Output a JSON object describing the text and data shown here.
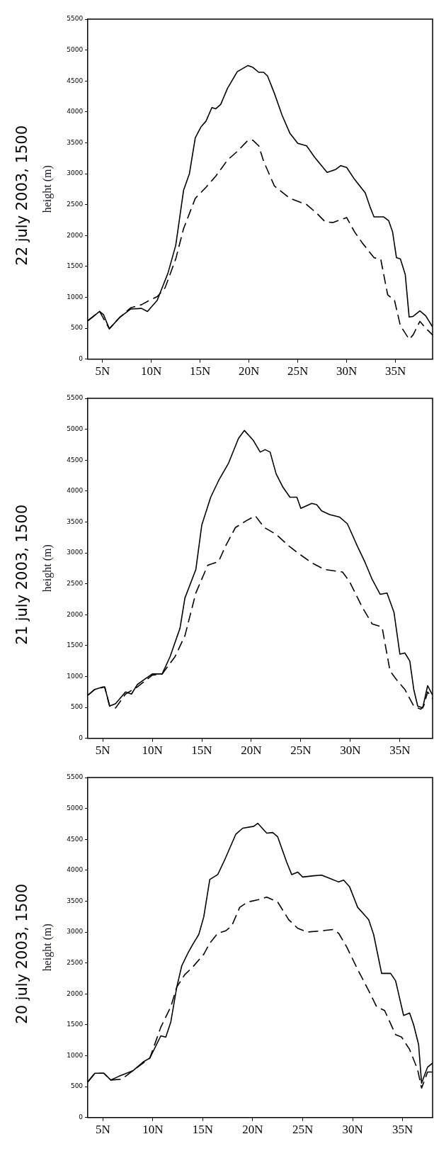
{
  "chart_data": [
    {
      "type": "line",
      "title": "22 july 2003, 1500",
      "ylabel": "height (m)",
      "xlim": [
        3.5,
        38.8
      ],
      "ylim": [
        0,
        5500
      ],
      "xticks": [
        {
          "value": 5,
          "label": "5N"
        },
        {
          "value": 10,
          "label": "10N"
        },
        {
          "value": 15,
          "label": "15N"
        },
        {
          "value": 20,
          "label": "20N"
        },
        {
          "value": 25,
          "label": "25N"
        },
        {
          "value": 30,
          "label": "30N"
        },
        {
          "value": 35,
          "label": "35N"
        }
      ],
      "yticks": [
        0,
        500,
        1000,
        1500,
        2000,
        2500,
        3000,
        3500,
        4000,
        4500,
        5000,
        5500
      ],
      "grid": false,
      "marker": "none",
      "series": [
        {
          "color": "#000000",
          "line_style": "solid",
          "x": [
            3.5,
            4.7,
            5.1,
            5.7,
            6.8,
            7.9,
            9.0,
            9.6,
            10.6,
            11.7,
            12.5,
            13.3,
            13.9,
            14.5,
            15.1,
            15.6,
            16.2,
            16.6,
            17.1,
            17.8,
            18.8,
            19.9,
            20.4,
            21.0,
            21.5,
            21.9,
            22.6,
            23.4,
            24.2,
            25.0,
            25.9,
            26.7,
            28.0,
            28.9,
            29.4,
            30.0,
            30.8,
            31.9,
            32.4,
            32.8,
            33.8,
            34.3,
            34.7,
            35.1,
            35.5,
            36.0,
            36.4,
            36.8,
            37.5,
            38.1,
            38.8
          ],
          "values": [
            620,
            770,
            720,
            490,
            680,
            810,
            820,
            770,
            950,
            1390,
            1840,
            2730,
            3000,
            3580,
            3760,
            3850,
            4070,
            4050,
            4120,
            4380,
            4650,
            4750,
            4720,
            4640,
            4640,
            4580,
            4300,
            3940,
            3650,
            3490,
            3450,
            3270,
            3020,
            3070,
            3130,
            3100,
            2910,
            2690,
            2460,
            2300,
            2300,
            2240,
            2060,
            1640,
            1620,
            1370,
            680,
            690,
            780,
            700,
            520
          ]
        },
        {
          "color": "#000000",
          "line_style": "dashed",
          "x": [
            3.5,
            4.7,
            5.7,
            6.8,
            7.9,
            9.0,
            9.8,
            10.6,
            11.4,
            12.5,
            13.3,
            14.5,
            15.6,
            16.6,
            17.8,
            18.8,
            19.9,
            20.4,
            21.0,
            21.5,
            22.6,
            24.2,
            25.9,
            27.0,
            27.8,
            28.6,
            30.0,
            30.8,
            31.6,
            32.8,
            33.5,
            34.2,
            34.9,
            35.5,
            36.4,
            36.8,
            37.5,
            38.1,
            38.8
          ],
          "values": [
            620,
            770,
            490,
            680,
            830,
            880,
            950,
            1010,
            1150,
            1620,
            2110,
            2600,
            2780,
            2960,
            3220,
            3360,
            3540,
            3540,
            3450,
            3200,
            2800,
            2600,
            2500,
            2350,
            2220,
            2210,
            2290,
            2060,
            1880,
            1640,
            1610,
            1040,
            950,
            540,
            320,
            390,
            610,
            500,
            390
          ]
        }
      ]
    },
    {
      "type": "line",
      "title": "21 july 2003, 1500",
      "ylabel": "height (m)",
      "xlim": [
        3.5,
        38.3
      ],
      "ylim": [
        0,
        5500
      ],
      "xticks": [
        {
          "value": 5,
          "label": "5N"
        },
        {
          "value": 10,
          "label": "10N"
        },
        {
          "value": 15,
          "label": "15N"
        },
        {
          "value": 20,
          "label": "20N"
        },
        {
          "value": 25,
          "label": "25N"
        },
        {
          "value": 30,
          "label": "30N"
        },
        {
          "value": 35,
          "label": "35N"
        }
      ],
      "yticks": [
        0,
        500,
        1000,
        1500,
        2000,
        2500,
        3000,
        3500,
        4000,
        4500,
        5000,
        5500
      ],
      "grid": false,
      "marker": "none",
      "series": [
        {
          "color": "#000000",
          "line_style": "solid",
          "x": [
            3.5,
            4.2,
            5.0,
            5.2,
            5.7,
            6.3,
            7.3,
            7.9,
            8.5,
            9.1,
            10.0,
            11.0,
            11.8,
            12.8,
            13.3,
            14.4,
            15.0,
            15.9,
            16.7,
            17.7,
            18.7,
            19.3,
            20.2,
            20.9,
            21.4,
            21.9,
            22.5,
            23.2,
            23.9,
            24.6,
            25.0,
            26.1,
            26.6,
            27.1,
            27.9,
            28.9,
            29.7,
            30.7,
            31.5,
            32.2,
            33.0,
            33.7,
            34.4,
            35.0,
            35.5,
            36.0,
            36.4,
            36.8,
            37.3,
            37.8,
            38.3
          ],
          "values": [
            695,
            790,
            830,
            830,
            520,
            560,
            750,
            715,
            870,
            940,
            1040,
            1040,
            1320,
            1780,
            2270,
            2730,
            3450,
            3900,
            4170,
            4450,
            4850,
            4980,
            4820,
            4630,
            4670,
            4630,
            4280,
            4060,
            3900,
            3900,
            3720,
            3800,
            3780,
            3680,
            3620,
            3580,
            3470,
            3110,
            2840,
            2570,
            2330,
            2350,
            2040,
            1360,
            1380,
            1250,
            790,
            520,
            490,
            850,
            695
          ]
        },
        {
          "color": "#000000",
          "line_style": "dashed",
          "x": [
            3.5,
            4.2,
            5.2,
            5.7,
            6.3,
            7.3,
            8.5,
            10.0,
            11.0,
            12.3,
            13.3,
            14.4,
            15.6,
            16.7,
            17.4,
            18.4,
            19.5,
            20.4,
            21.3,
            22.5,
            23.8,
            24.6,
            26.1,
            27.4,
            29.2,
            29.9,
            31.2,
            32.2,
            33.2,
            34.0,
            34.7,
            35.5,
            36.4,
            37.1,
            37.4,
            37.8,
            38.3
          ],
          "values": [
            695,
            790,
            830,
            520,
            490,
            715,
            830,
            1020,
            1040,
            1320,
            1660,
            2350,
            2800,
            2860,
            3110,
            3410,
            3520,
            3600,
            3410,
            3300,
            3110,
            3010,
            2840,
            2730,
            2690,
            2540,
            2120,
            1850,
            1800,
            1090,
            940,
            790,
            520,
            470,
            520,
            750,
            640
          ]
        }
      ]
    },
    {
      "type": "line",
      "title": "20 july 2003, 1500",
      "ylabel": "height (m)",
      "xlim": [
        3.5,
        38.0
      ],
      "ylim": [
        0,
        5500
      ],
      "xticks": [
        {
          "value": 5,
          "label": "5N"
        },
        {
          "value": 10,
          "label": "10N"
        },
        {
          "value": 15,
          "label": "15N"
        },
        {
          "value": 20,
          "label": "20N"
        },
        {
          "value": 25,
          "label": "25N"
        },
        {
          "value": 30,
          "label": "30N"
        },
        {
          "value": 35,
          "label": "35N"
        }
      ],
      "yticks": [
        0,
        500,
        1000,
        1500,
        2000,
        2500,
        3000,
        3500,
        4000,
        4500,
        5000,
        5500
      ],
      "grid": false,
      "marker": "none",
      "series": [
        {
          "color": "#000000",
          "line_style": "solid",
          "x": [
            3.5,
            4.2,
            5.1,
            5.8,
            6.6,
            8.0,
            9.1,
            9.7,
            10.8,
            11.3,
            11.8,
            12.4,
            12.9,
            13.5,
            14.0,
            14.6,
            15.1,
            15.7,
            16.5,
            17.2,
            18.3,
            19.0,
            20.1,
            20.5,
            21.4,
            22.0,
            22.5,
            23.4,
            23.9,
            24.5,
            25.0,
            26.1,
            26.9,
            27.7,
            28.6,
            29.1,
            29.7,
            30.5,
            31.6,
            32.1,
            32.9,
            33.8,
            34.3,
            35.1,
            35.7,
            36.1,
            36.6,
            36.9,
            37.5,
            38.0
          ],
          "values": [
            575,
            715,
            715,
            605,
            665,
            755,
            905,
            960,
            1320,
            1300,
            1545,
            2110,
            2455,
            2655,
            2800,
            2960,
            3245,
            3850,
            3930,
            4170,
            4580,
            4680,
            4710,
            4760,
            4600,
            4610,
            4540,
            4130,
            3930,
            3970,
            3890,
            3910,
            3920,
            3870,
            3810,
            3840,
            3730,
            3400,
            3200,
            2960,
            2330,
            2330,
            2210,
            1650,
            1690,
            1500,
            1180,
            555,
            815,
            880
          ]
        },
        {
          "color": "#000000",
          "line_style": "dashed",
          "x": [
            3.5,
            4.2,
            5.1,
            5.8,
            6.9,
            8.0,
            9.7,
            10.8,
            11.8,
            12.4,
            13.2,
            14.0,
            15.1,
            15.7,
            16.5,
            17.3,
            17.9,
            18.7,
            19.5,
            20.6,
            21.4,
            22.5,
            23.6,
            24.5,
            25.5,
            26.9,
            28.0,
            28.6,
            29.4,
            30.5,
            31.8,
            32.4,
            33.2,
            34.3,
            34.9,
            35.7,
            36.5,
            36.9,
            37.5,
            38.0
          ],
          "values": [
            575,
            715,
            715,
            605,
            620,
            755,
            960,
            1460,
            1790,
            2110,
            2310,
            2435,
            2640,
            2820,
            2980,
            3020,
            3100,
            3400,
            3485,
            3525,
            3565,
            3485,
            3200,
            3060,
            3000,
            3020,
            3040,
            2980,
            2760,
            2395,
            1990,
            1790,
            1730,
            1340,
            1300,
            1100,
            775,
            475,
            735,
            735
          ]
        }
      ]
    }
  ]
}
